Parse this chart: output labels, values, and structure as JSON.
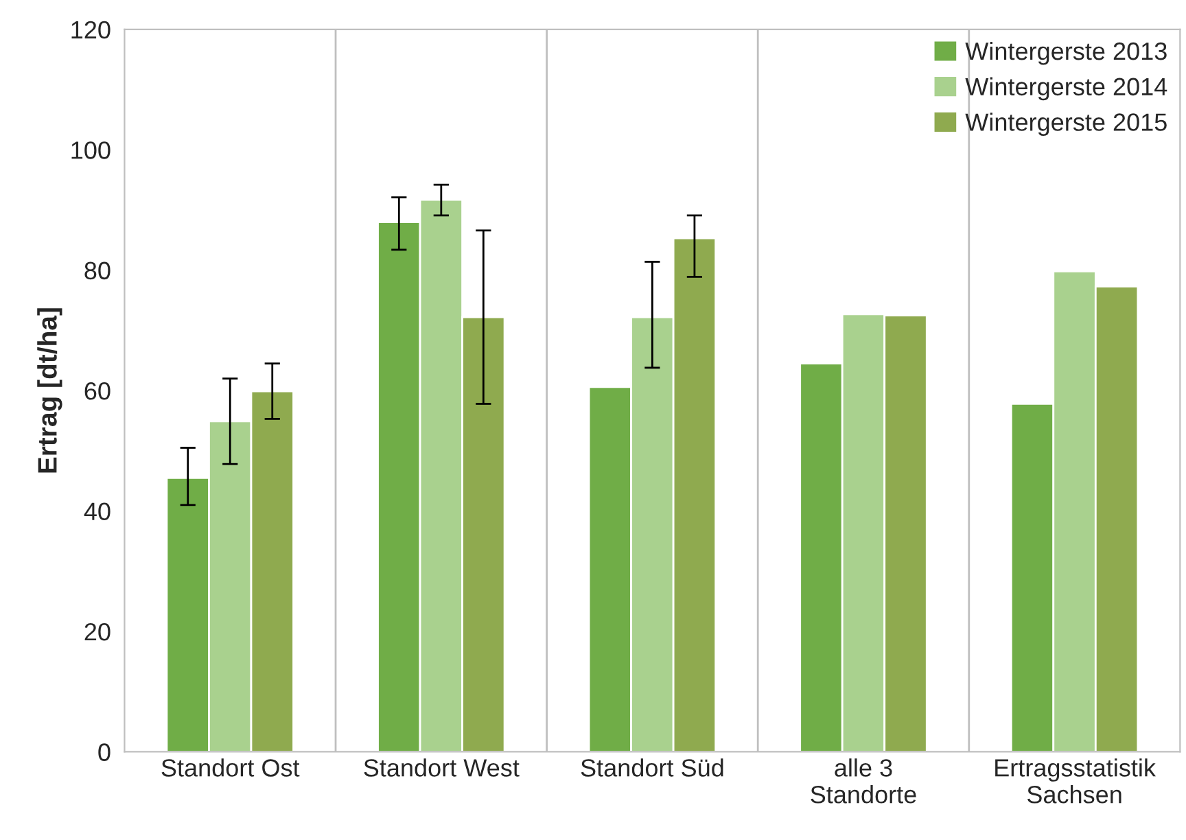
{
  "chart_data": {
    "type": "bar",
    "ylabel": "Ertrag [dt/ha]",
    "categories": [
      "Standort Ost",
      "Standort West",
      "Standort Süd",
      "alle 3\nStandorte",
      "Ertragsstatistik\nSachsen"
    ],
    "series": [
      {
        "name": "Wintergerste 2013",
        "color": "#70ad47",
        "values": [
          45.5,
          88,
          60.6,
          64.5,
          57.8
        ],
        "errors": [
          [
            41.0,
            50.5
          ],
          [
            83.4,
            92.1
          ],
          null,
          null,
          null
        ]
      },
      {
        "name": "Wintergerste 2014",
        "color": "#a9d18e",
        "values": [
          54.9,
          91.7,
          72.2,
          72.7,
          79.8
        ],
        "errors": [
          [
            47.8,
            62.0
          ],
          [
            89.1,
            94.2
          ],
          [
            63.8,
            81.4
          ],
          null,
          null
        ]
      },
      {
        "name": "Wintergerste 2015",
        "color": "#8faa4f",
        "values": [
          59.9,
          72.2,
          85.3,
          72.5,
          77.3
        ],
        "errors": [
          [
            55.3,
            64.5
          ],
          [
            57.8,
            86.6
          ],
          [
            78.9,
            89.1
          ],
          null,
          null
        ]
      }
    ],
    "ylim": [
      0,
      120
    ],
    "yticks": [
      0,
      20,
      40,
      60,
      80,
      100,
      120
    ],
    "grid": "x",
    "legend": "top right"
  }
}
